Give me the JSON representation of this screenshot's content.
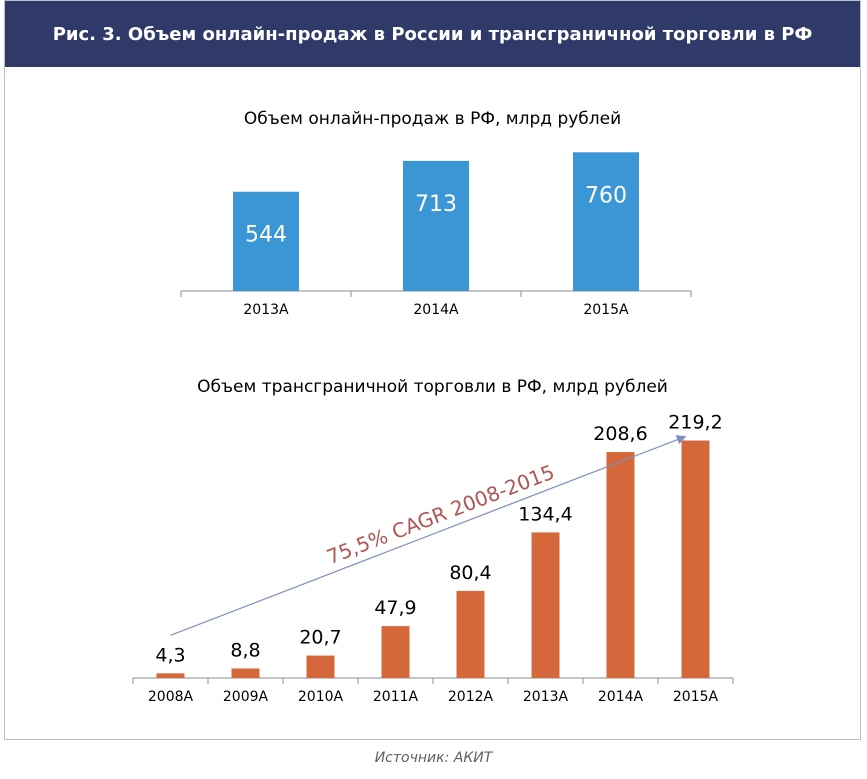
{
  "figure": {
    "title": "Рис. 3. Объем онлайн-продаж в России и трансграничной торговли в РФ",
    "source": "Источник: АКИТ"
  },
  "colors": {
    "header_bg": "#2f3a69",
    "online_bar": "#3a96d4",
    "cross_bar": "#d4683a",
    "trend_line": "#7e8fbf",
    "cagr_text": "#b05454"
  },
  "chart_data": [
    {
      "type": "bar",
      "title": "Объем онлайн-продаж в РФ, млрд рублей",
      "categories": [
        "2013A",
        "2014A",
        "2015A"
      ],
      "values": [
        544,
        713,
        760
      ],
      "value_labels": [
        "544",
        "713",
        "760"
      ],
      "ylim": [
        0,
        800
      ],
      "grid": false,
      "legend": "none"
    },
    {
      "type": "bar",
      "title": "Объем трансграничной торговли в РФ, млрд рублей",
      "categories": [
        "2008A",
        "2009A",
        "2010A",
        "2011A",
        "2012A",
        "2013A",
        "2014A",
        "2015A"
      ],
      "values": [
        4.3,
        8.8,
        20.7,
        47.9,
        80.4,
        134.4,
        208.6,
        219.2
      ],
      "value_labels": [
        "4,3",
        "8,8",
        "20,7",
        "47,9",
        "80,4",
        "134,4",
        "208,6",
        "219,2"
      ],
      "ylim": [
        0,
        240
      ],
      "grid": false,
      "legend": "none",
      "annotation": "75,5% CAGR 2008-2015",
      "trend_arrow": {
        "from": "2008A",
        "to": "2015A"
      }
    }
  ]
}
